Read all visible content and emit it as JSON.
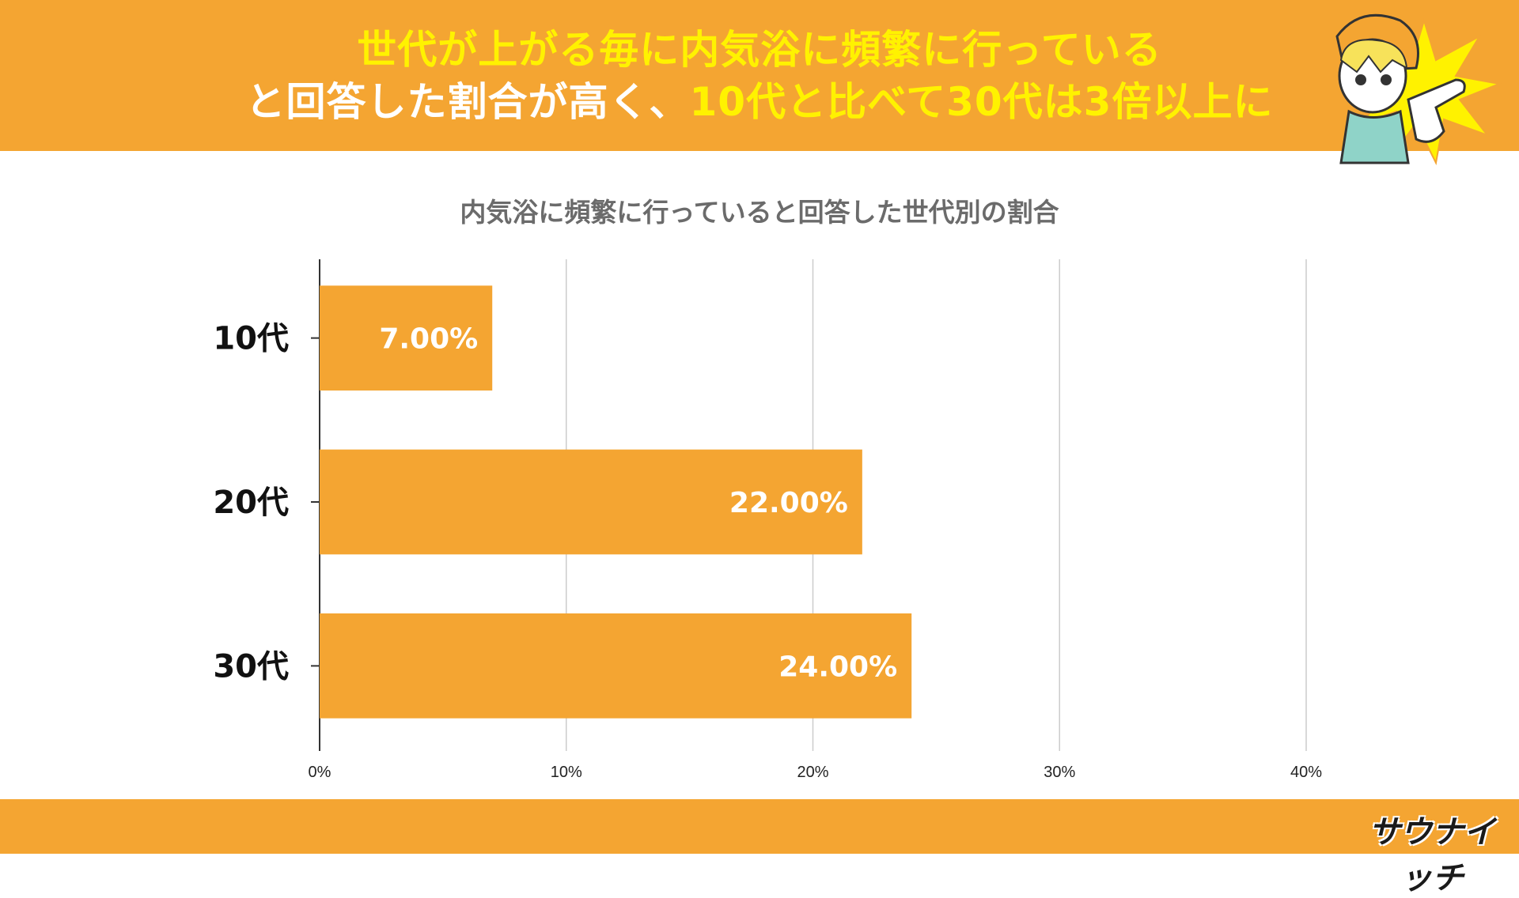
{
  "header": {
    "line1": "世代が上がる毎に内気浴に頻繁に行っている",
    "line2_white": "と回答した割合が高く、",
    "line2_highlight": "10代と比べて30代は3倍以上に"
  },
  "colors": {
    "accent": "#f4a532",
    "highlight": "#fff200",
    "bar": "#f4a532",
    "grid": "#cccccc"
  },
  "logo": {
    "text": "サウナイッチ"
  },
  "chart_data": {
    "type": "bar",
    "orientation": "horizontal",
    "title": "内気浴に頻繁に行っていると回答した世代別の割合",
    "categories": [
      "10代",
      "20代",
      "30代"
    ],
    "values": [
      7.0,
      22.0,
      24.0
    ],
    "data_labels": [
      "7.00%",
      "22.00%",
      "24.00%"
    ],
    "x_ticks": [
      "0%",
      "10%",
      "20%",
      "30%",
      "40%"
    ],
    "xlim": [
      0,
      40
    ],
    "grid": true,
    "legend": "none"
  }
}
